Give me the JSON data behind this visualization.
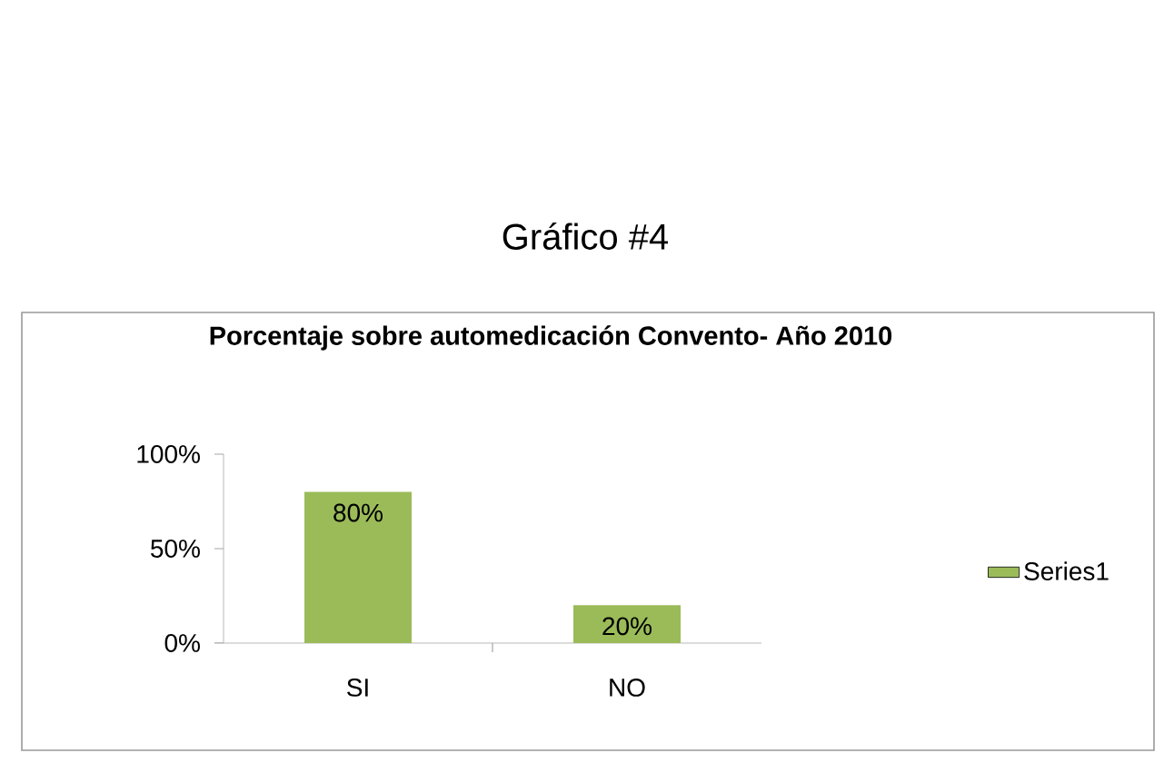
{
  "chart_data": {
    "type": "bar",
    "title": "Gráfico #4",
    "subtitle": "Porcentaje sobre automedicación Convento- Año 2010",
    "categories": [
      "SI",
      "NO"
    ],
    "series": [
      {
        "name": "Series1",
        "color": "#9bbb59",
        "values": [
          80,
          20
        ],
        "value_labels": [
          "80%",
          "20%"
        ]
      }
    ],
    "ylim": [
      0,
      100
    ],
    "yticks": [
      {
        "value": 0,
        "label": "0%"
      },
      {
        "value": 50,
        "label": "50%"
      },
      {
        "value": 100,
        "label": "100%"
      }
    ],
    "legend": "right"
  }
}
